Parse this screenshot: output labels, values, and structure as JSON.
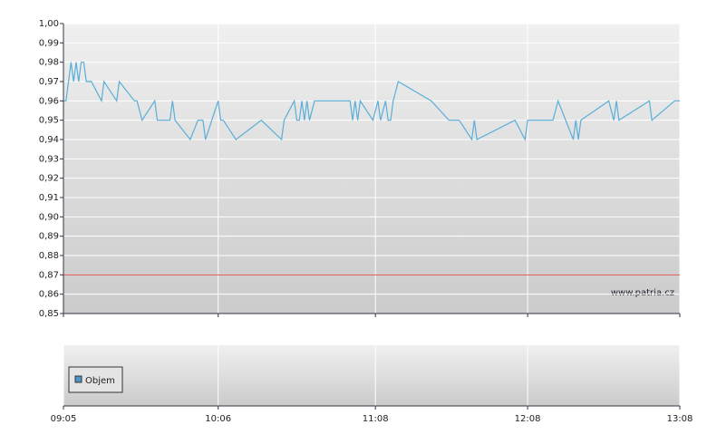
{
  "chart_data": {
    "type": "line",
    "x": [
      "09:05",
      "09:06",
      "09:08",
      "09:09",
      "09:10",
      "09:11",
      "09:12",
      "09:13",
      "09:14",
      "09:16",
      "09:20",
      "09:21",
      "09:26",
      "09:27",
      "09:33",
      "09:34",
      "09:36",
      "09:41",
      "09:42",
      "09:47",
      "09:48",
      "09:49",
      "09:55",
      "09:58",
      "10:00",
      "10:01",
      "10:06",
      "10:07",
      "10:08",
      "10:13",
      "10:23",
      "10:31",
      "10:32",
      "10:36",
      "10:37",
      "10:38",
      "10:39",
      "10:40",
      "10:41",
      "10:42",
      "10:44",
      "10:58",
      "10:59",
      "11:00",
      "11:01",
      "11:02",
      "11:07",
      "11:09",
      "11:10",
      "11:12",
      "11:13",
      "11:14",
      "11:15",
      "11:17",
      "11:30",
      "11:37",
      "11:41",
      "11:46",
      "11:47",
      "11:48",
      "12:03",
      "12:07",
      "12:08",
      "12:18",
      "12:20",
      "12:26",
      "12:27",
      "12:28",
      "12:29",
      "12:40",
      "12:42",
      "12:43",
      "12:44",
      "12:56",
      "12:57",
      "13:06",
      "13:08"
    ],
    "values": [
      0.96,
      0.96,
      0.98,
      0.97,
      0.98,
      0.97,
      0.98,
      0.98,
      0.97,
      0.97,
      0.96,
      0.97,
      0.96,
      0.97,
      0.96,
      0.96,
      0.95,
      0.96,
      0.95,
      0.95,
      0.96,
      0.95,
      0.94,
      0.95,
      0.95,
      0.94,
      0.96,
      0.95,
      0.95,
      0.94,
      0.95,
      0.94,
      0.95,
      0.96,
      0.95,
      0.95,
      0.96,
      0.95,
      0.96,
      0.95,
      0.96,
      0.96,
      0.95,
      0.96,
      0.95,
      0.96,
      0.95,
      0.96,
      0.95,
      0.96,
      0.95,
      0.95,
      0.96,
      0.97,
      0.96,
      0.95,
      0.95,
      0.94,
      0.95,
      0.94,
      0.95,
      0.94,
      0.95,
      0.95,
      0.96,
      0.94,
      0.95,
      0.94,
      0.95,
      0.96,
      0.95,
      0.96,
      0.95,
      0.96,
      0.95,
      0.96,
      0.96
    ],
    "color": "#5aaed8",
    "xlim": [
      "09:05",
      "13:08"
    ],
    "xticks": [
      "09:05",
      "10:06",
      "11:08",
      "12:08",
      "13:08"
    ],
    "ylim": [
      0.85,
      1
    ],
    "yticks": [
      {
        "value": 0.85,
        "label": "0,85"
      },
      {
        "value": 0.86,
        "label": "0,86"
      },
      {
        "value": 0.87,
        "label": "0,87"
      },
      {
        "value": 0.88,
        "label": "0,88"
      },
      {
        "value": 0.89,
        "label": "0,89"
      },
      {
        "value": 0.9,
        "label": "0,90"
      },
      {
        "value": 0.91,
        "label": "0,91"
      },
      {
        "value": 0.92,
        "label": "0,92"
      },
      {
        "value": 0.93,
        "label": "0,93"
      },
      {
        "value": 0.94,
        "label": "0,94"
      },
      {
        "value": 0.95,
        "label": "0,95"
      },
      {
        "value": 0.96,
        "label": "0,96"
      },
      {
        "value": 0.97,
        "label": "0,97"
      },
      {
        "value": 0.98,
        "label": "0,98"
      },
      {
        "value": 0.99,
        "label": "0,99"
      },
      {
        "value": 1,
        "label": "1,00"
      }
    ],
    "reference_line": 0.87,
    "reference_color": "#d9534f",
    "grid": true,
    "watermark": "www.patria.cz",
    "volume_legend": {
      "name": "Objem",
      "color": "#4f94c8"
    }
  }
}
